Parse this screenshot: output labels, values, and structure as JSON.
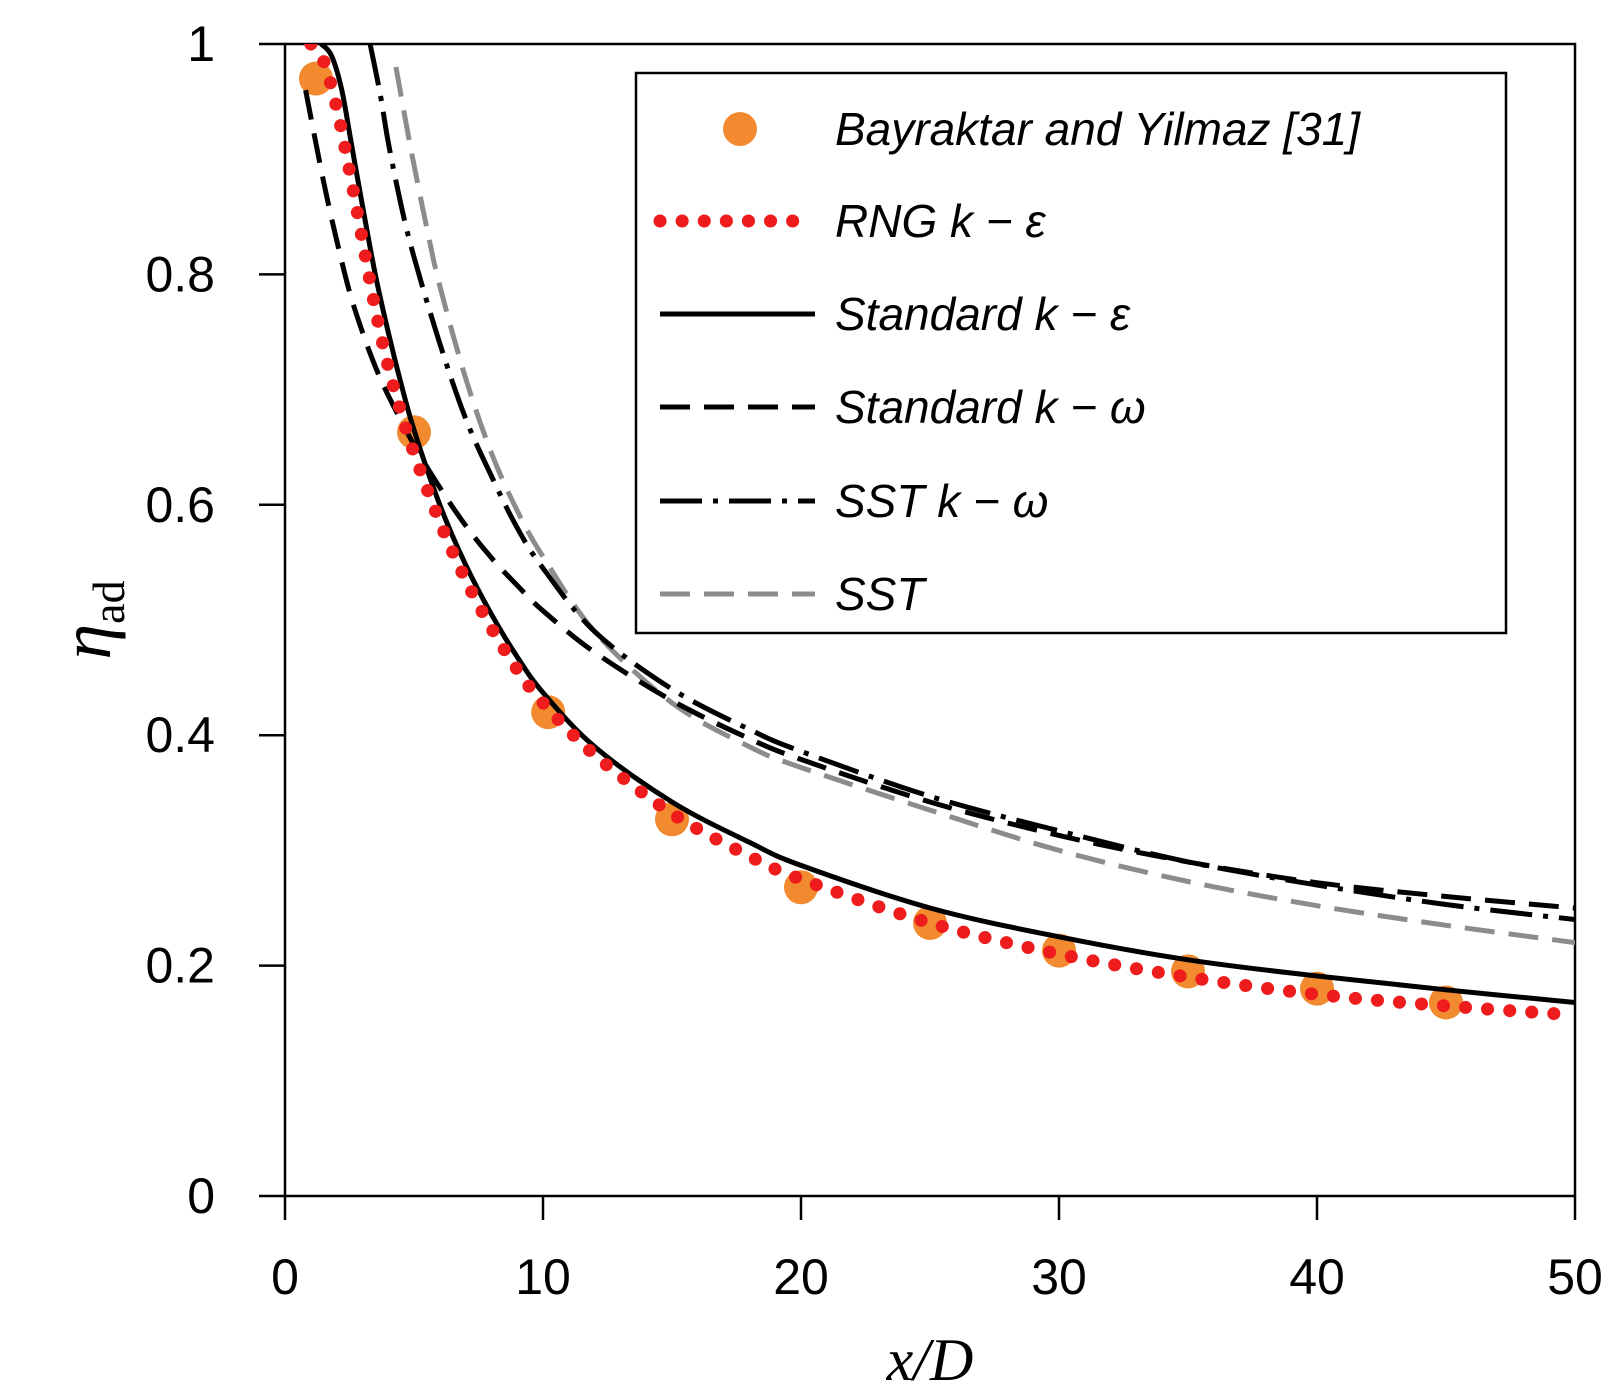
{
  "chart_data": {
    "type": "line",
    "title": "",
    "xlabel": "x/D",
    "ylabel_main": "η",
    "ylabel_sub": "ad",
    "xlim": [
      0,
      50
    ],
    "ylim": [
      0,
      1
    ],
    "xticks": [
      0,
      10,
      20,
      30,
      40,
      50
    ],
    "xtick_labels": [
      "0",
      "10",
      "20",
      "30",
      "40",
      "50"
    ],
    "yticks": [
      0,
      0.2,
      0.4,
      0.6,
      0.8,
      1
    ],
    "ytick_labels": [
      "0",
      "0.2",
      "0.4",
      "0.6",
      "0.8",
      "1"
    ],
    "grid": false,
    "legend_position": "top-right",
    "series": [
      {
        "name": "Bayraktar and Yilmaz [31]",
        "style": "markers",
        "color": "#F28A30",
        "x": [
          1.2,
          5,
          10.2,
          15,
          20,
          25,
          30,
          35,
          40,
          45
        ],
        "y": [
          0.97,
          0.663,
          0.42,
          0.327,
          0.268,
          0.237,
          0.213,
          0.195,
          0.18,
          0.168
        ]
      },
      {
        "name": "RNG k − ε",
        "style": "dotted",
        "color": "#EE1C1C",
        "x": [
          1,
          1.5,
          2,
          2.5,
          3,
          3.5,
          4,
          4.5,
          5,
          6,
          7,
          8,
          9,
          10,
          12,
          15,
          18,
          20,
          25,
          30,
          35,
          40,
          45,
          50
        ],
        "y": [
          1.0,
          0.985,
          0.945,
          0.89,
          0.83,
          0.77,
          0.72,
          0.68,
          0.645,
          0.585,
          0.535,
          0.493,
          0.457,
          0.428,
          0.383,
          0.332,
          0.295,
          0.275,
          0.237,
          0.21,
          0.19,
          0.175,
          0.165,
          0.157
        ]
      },
      {
        "name": "Standard k − ε",
        "style": "solid",
        "color": "#000000",
        "x": [
          1.4,
          1.8,
          2.2,
          2.6,
          3,
          3.5,
          4,
          4.5,
          5,
          6,
          7,
          8,
          9,
          10,
          12,
          15,
          18,
          20,
          25,
          30,
          35,
          40,
          45,
          50
        ],
        "y": [
          1.0,
          0.99,
          0.96,
          0.91,
          0.86,
          0.8,
          0.75,
          0.705,
          0.665,
          0.6,
          0.548,
          0.505,
          0.468,
          0.437,
          0.39,
          0.342,
          0.307,
          0.287,
          0.25,
          0.225,
          0.205,
          0.191,
          0.179,
          0.168
        ]
      },
      {
        "name": "Standard k − ω",
        "style": "dashed",
        "color": "#000000",
        "x": [
          0.8,
          1.5,
          2,
          2.5,
          3,
          3.5,
          4,
          5,
          6,
          7,
          8,
          9,
          10,
          12,
          15,
          18,
          20,
          25,
          30,
          35,
          40,
          45,
          50
        ],
        "y": [
          0.96,
          0.88,
          0.83,
          0.785,
          0.75,
          0.72,
          0.695,
          0.652,
          0.615,
          0.582,
          0.554,
          0.53,
          0.508,
          0.472,
          0.43,
          0.397,
          0.379,
          0.342,
          0.313,
          0.29,
          0.272,
          0.26,
          0.25
        ]
      },
      {
        "name": "SST k − ω",
        "style": "dashdot",
        "color": "#000000",
        "x": [
          3.3,
          3.7,
          4,
          4.5,
          5,
          6,
          7,
          8,
          9,
          10,
          12,
          15,
          18,
          20,
          25,
          30,
          35,
          40,
          45,
          50
        ],
        "y": [
          1.0,
          0.955,
          0.915,
          0.86,
          0.815,
          0.74,
          0.675,
          0.625,
          0.58,
          0.545,
          0.49,
          0.44,
          0.405,
          0.386,
          0.347,
          0.317,
          0.29,
          0.27,
          0.253,
          0.24
        ]
      },
      {
        "name": "SST",
        "style": "dashed-gray",
        "color": "#8C8C8C",
        "x": [
          4.3,
          4.7,
          5,
          5.5,
          6,
          7,
          8,
          9,
          10,
          12,
          15,
          18,
          20,
          25,
          30,
          35,
          40,
          45,
          50
        ],
        "y": [
          0.98,
          0.93,
          0.895,
          0.84,
          0.79,
          0.71,
          0.645,
          0.595,
          0.555,
          0.49,
          0.428,
          0.39,
          0.372,
          0.335,
          0.3,
          0.273,
          0.252,
          0.235,
          0.22
        ]
      }
    ]
  }
}
